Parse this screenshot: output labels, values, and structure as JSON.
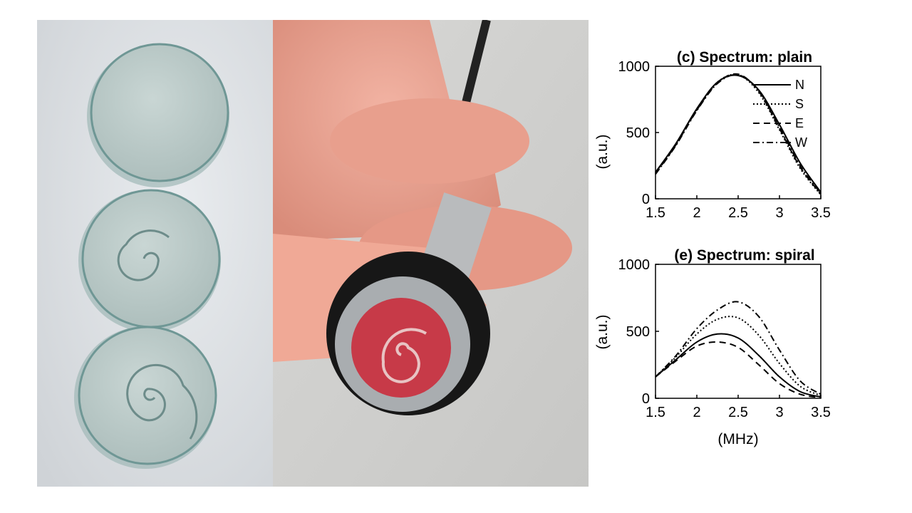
{
  "chart_data": [
    {
      "type": "line",
      "title": "(c) Spectrum: plain",
      "xlabel": "",
      "ylabel": "(a.u.)",
      "xlim": [
        1.5,
        3.5
      ],
      "ylim": [
        0,
        1000
      ],
      "xticks": [
        "1.5",
        "2",
        "2.5",
        "3",
        "3.5"
      ],
      "yticks": [
        "0",
        "500",
        "1000"
      ],
      "legend_position": "top-right",
      "x": [
        1.5,
        1.75,
        2.0,
        2.25,
        2.5,
        2.75,
        3.0,
        3.25,
        3.5
      ],
      "series": [
        {
          "name": "N",
          "style": "solid",
          "values": [
            200,
            420,
            680,
            880,
            930,
            820,
            560,
            270,
            50
          ]
        },
        {
          "name": "S",
          "style": "dotted",
          "values": [
            195,
            415,
            675,
            880,
            935,
            800,
            520,
            230,
            30
          ]
        },
        {
          "name": "E",
          "style": "dashed",
          "values": [
            190,
            410,
            670,
            875,
            940,
            810,
            530,
            240,
            35
          ]
        },
        {
          "name": "W",
          "style": "dashdot",
          "values": [
            185,
            405,
            665,
            870,
            935,
            815,
            540,
            250,
            40
          ]
        }
      ]
    },
    {
      "type": "line",
      "title": "(e) Spectrum: spiral",
      "xlabel": "(MHz)",
      "ylabel": "(a.u.)",
      "xlim": [
        1.5,
        3.5
      ],
      "ylim": [
        0,
        1000
      ],
      "xticks": [
        "1.5",
        "2",
        "2.5",
        "3",
        "3.5"
      ],
      "yticks": [
        "0",
        "500",
        "1000"
      ],
      "x": [
        1.5,
        1.75,
        2.0,
        2.25,
        2.5,
        2.75,
        3.0,
        3.25,
        3.5
      ],
      "series": [
        {
          "name": "N",
          "style": "solid",
          "values": [
            160,
            290,
            420,
            480,
            450,
            320,
            160,
            50,
            10
          ]
        },
        {
          "name": "S",
          "style": "dotted",
          "values": [
            160,
            310,
            480,
            590,
            600,
            470,
            260,
            90,
            20
          ]
        },
        {
          "name": "E",
          "style": "dashed",
          "values": [
            160,
            280,
            390,
            420,
            380,
            250,
            110,
            30,
            5
          ]
        },
        {
          "name": "W",
          "style": "dashdot",
          "values": [
            160,
            320,
            520,
            660,
            720,
            610,
            360,
            130,
            30
          ]
        }
      ]
    }
  ]
}
